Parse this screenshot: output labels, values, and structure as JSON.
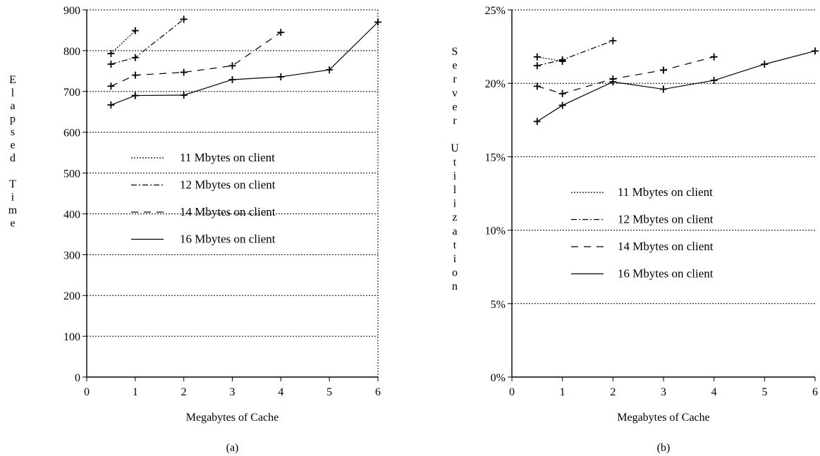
{
  "chart_data": [
    {
      "type": "line",
      "caption": "(a)",
      "xlabel": "Megabytes of Cache",
      "ylabel": "Elapsed Time",
      "xlim": [
        0,
        6
      ],
      "ylim": [
        0,
        900
      ],
      "xticks": [
        "0",
        "1",
        "2",
        "3",
        "4",
        "5",
        "6"
      ],
      "yticks": [
        "0",
        "100",
        "200",
        "300",
        "400",
        "500",
        "600",
        "700",
        "800",
        "900"
      ],
      "grid": "horizontal dotted",
      "legend_position": "center-left",
      "series": [
        {
          "name": "11 Mbytes on client",
          "style": "dotted",
          "x": [
            0.5,
            1
          ],
          "y": [
            793,
            849
          ]
        },
        {
          "name": "12 Mbytes on client",
          "style": "dashdot",
          "x": [
            0.5,
            1,
            2
          ],
          "y": [
            767,
            783,
            877
          ]
        },
        {
          "name": "14 Mbytes on client",
          "style": "dashed",
          "x": [
            0.5,
            1,
            2,
            3,
            4
          ],
          "y": [
            713,
            740,
            747,
            763,
            845
          ]
        },
        {
          "name": "16 Mbytes on client",
          "style": "solid",
          "x": [
            0.5,
            1,
            2,
            3,
            4,
            5,
            6
          ],
          "y": [
            667,
            690,
            691,
            729,
            736,
            753,
            870
          ]
        }
      ]
    },
    {
      "type": "line",
      "caption": "(b)",
      "xlabel": "Megabytes of Cache",
      "ylabel": "Server Utilization",
      "xlim": [
        0,
        6
      ],
      "ylim": [
        0,
        25
      ],
      "xticks": [
        "0",
        "1",
        "2",
        "3",
        "4",
        "5",
        "6"
      ],
      "yticks": [
        "0%",
        "5%",
        "10%",
        "15%",
        "20%",
        "25%"
      ],
      "grid": "horizontal dotted",
      "legend_position": "center",
      "series": [
        {
          "name": "11 Mbytes on client",
          "style": "dotted",
          "x": [
            0.5,
            1
          ],
          "y": [
            21.8,
            21.5
          ]
        },
        {
          "name": "12 Mbytes on client",
          "style": "dashdot",
          "x": [
            0.5,
            1,
            2
          ],
          "y": [
            21.2,
            21.6,
            22.9
          ]
        },
        {
          "name": "14 Mbytes on client",
          "style": "dashed",
          "x": [
            0.5,
            1,
            2,
            3,
            4
          ],
          "y": [
            19.8,
            19.3,
            20.3,
            20.9,
            21.8
          ]
        },
        {
          "name": "16 Mbytes on client",
          "style": "solid",
          "x": [
            0.5,
            1,
            2,
            3,
            4,
            5,
            6
          ],
          "y": [
            17.4,
            18.5,
            20.1,
            19.6,
            20.2,
            21.3,
            22.2
          ]
        }
      ]
    }
  ]
}
